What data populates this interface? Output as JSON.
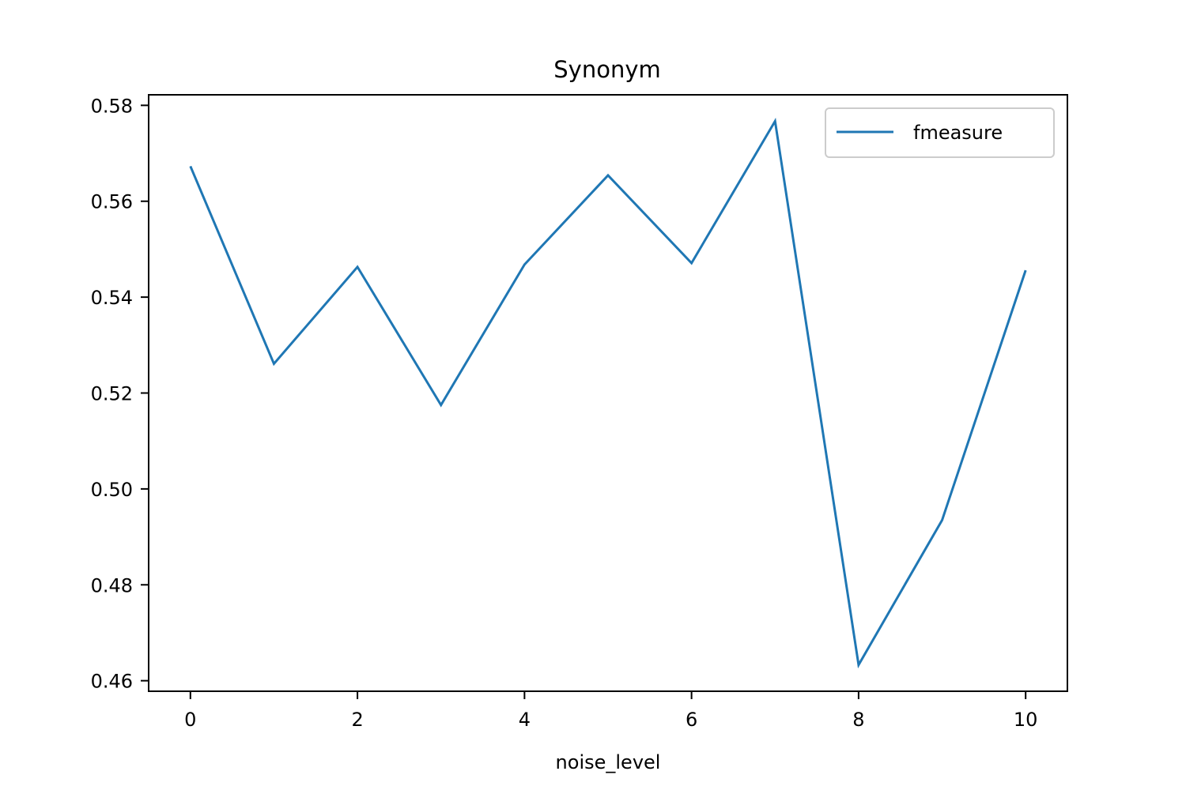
{
  "chart_data": {
    "type": "line",
    "title": "Synonym",
    "xlabel": "noise_level",
    "ylabel": "",
    "x": [
      0,
      1,
      2,
      3,
      4,
      5,
      6,
      7,
      8,
      9,
      10
    ],
    "series": [
      {
        "name": "fmeasure",
        "color": "#1f77b4",
        "values": [
          0.5673,
          0.5261,
          0.5463,
          0.5175,
          0.5468,
          0.5654,
          0.5471,
          0.5767,
          0.4633,
          0.4935,
          0.5456
        ]
      }
    ],
    "xlim": [
      -0.5,
      10.5
    ],
    "ylim": [
      0.4578,
      0.5822
    ],
    "xticks": [
      0,
      2,
      4,
      6,
      8,
      10
    ],
    "xtick_labels": [
      "0",
      "2",
      "4",
      "6",
      "8",
      "10"
    ],
    "yticks": [
      0.46,
      0.48,
      0.5,
      0.52,
      0.54,
      0.56,
      0.58
    ],
    "ytick_labels": [
      "0.46",
      "0.48",
      "0.50",
      "0.52",
      "0.54",
      "0.56",
      "0.58"
    ],
    "grid": false,
    "legend_position": "top-right"
  }
}
